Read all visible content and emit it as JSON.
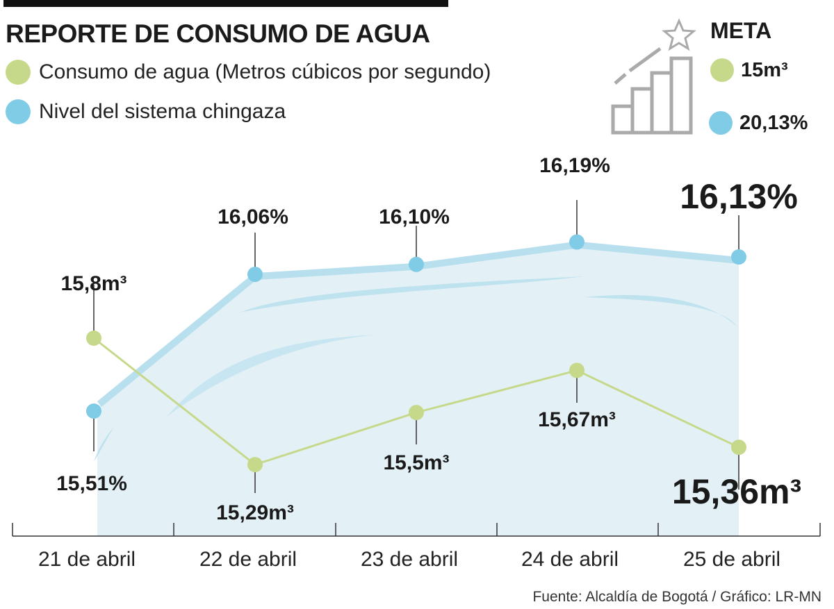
{
  "title": "REPORTE DE CONSUMO DE AGUA",
  "legend": [
    {
      "label": "Consumo de agua (Metros cúbicos por segundo)",
      "color": "#c6d98a"
    },
    {
      "label": "Nivel del sistema chingaza",
      "color": "#80cbe5"
    }
  ],
  "meta": {
    "title": "META",
    "icon": "bar-chart-star-icon",
    "items": [
      {
        "label": "15m³",
        "color": "#c6d98a"
      },
      {
        "label": "20,13%",
        "color": "#80cbe5"
      }
    ]
  },
  "source": "Fuente: Alcaldía de Bogotá / Gráfico: LR-MN",
  "chart_data": {
    "type": "line",
    "categories": [
      "21 de abril",
      "22 de abril",
      "23 de abril",
      "24 de abril",
      "25 de abril"
    ],
    "series": [
      {
        "name": "Consumo de agua (Metros cúbicos por segundo)",
        "values": [
          15.8,
          15.29,
          15.5,
          15.67,
          15.36
        ],
        "labels": [
          "15,8m³",
          "15,29m³",
          "15,5m³",
          "15,67m³",
          "15,36m³"
        ],
        "color": "#c6d98a"
      },
      {
        "name": "Nivel del sistema chingaza",
        "values": [
          15.51,
          16.06,
          16.1,
          16.19,
          16.13
        ],
        "labels": [
          "15,51%",
          "16,06%",
          "16,10%",
          "16,19%",
          "16,13%"
        ],
        "color": "#80cbe5",
        "style": "area"
      }
    ],
    "grid": false
  }
}
